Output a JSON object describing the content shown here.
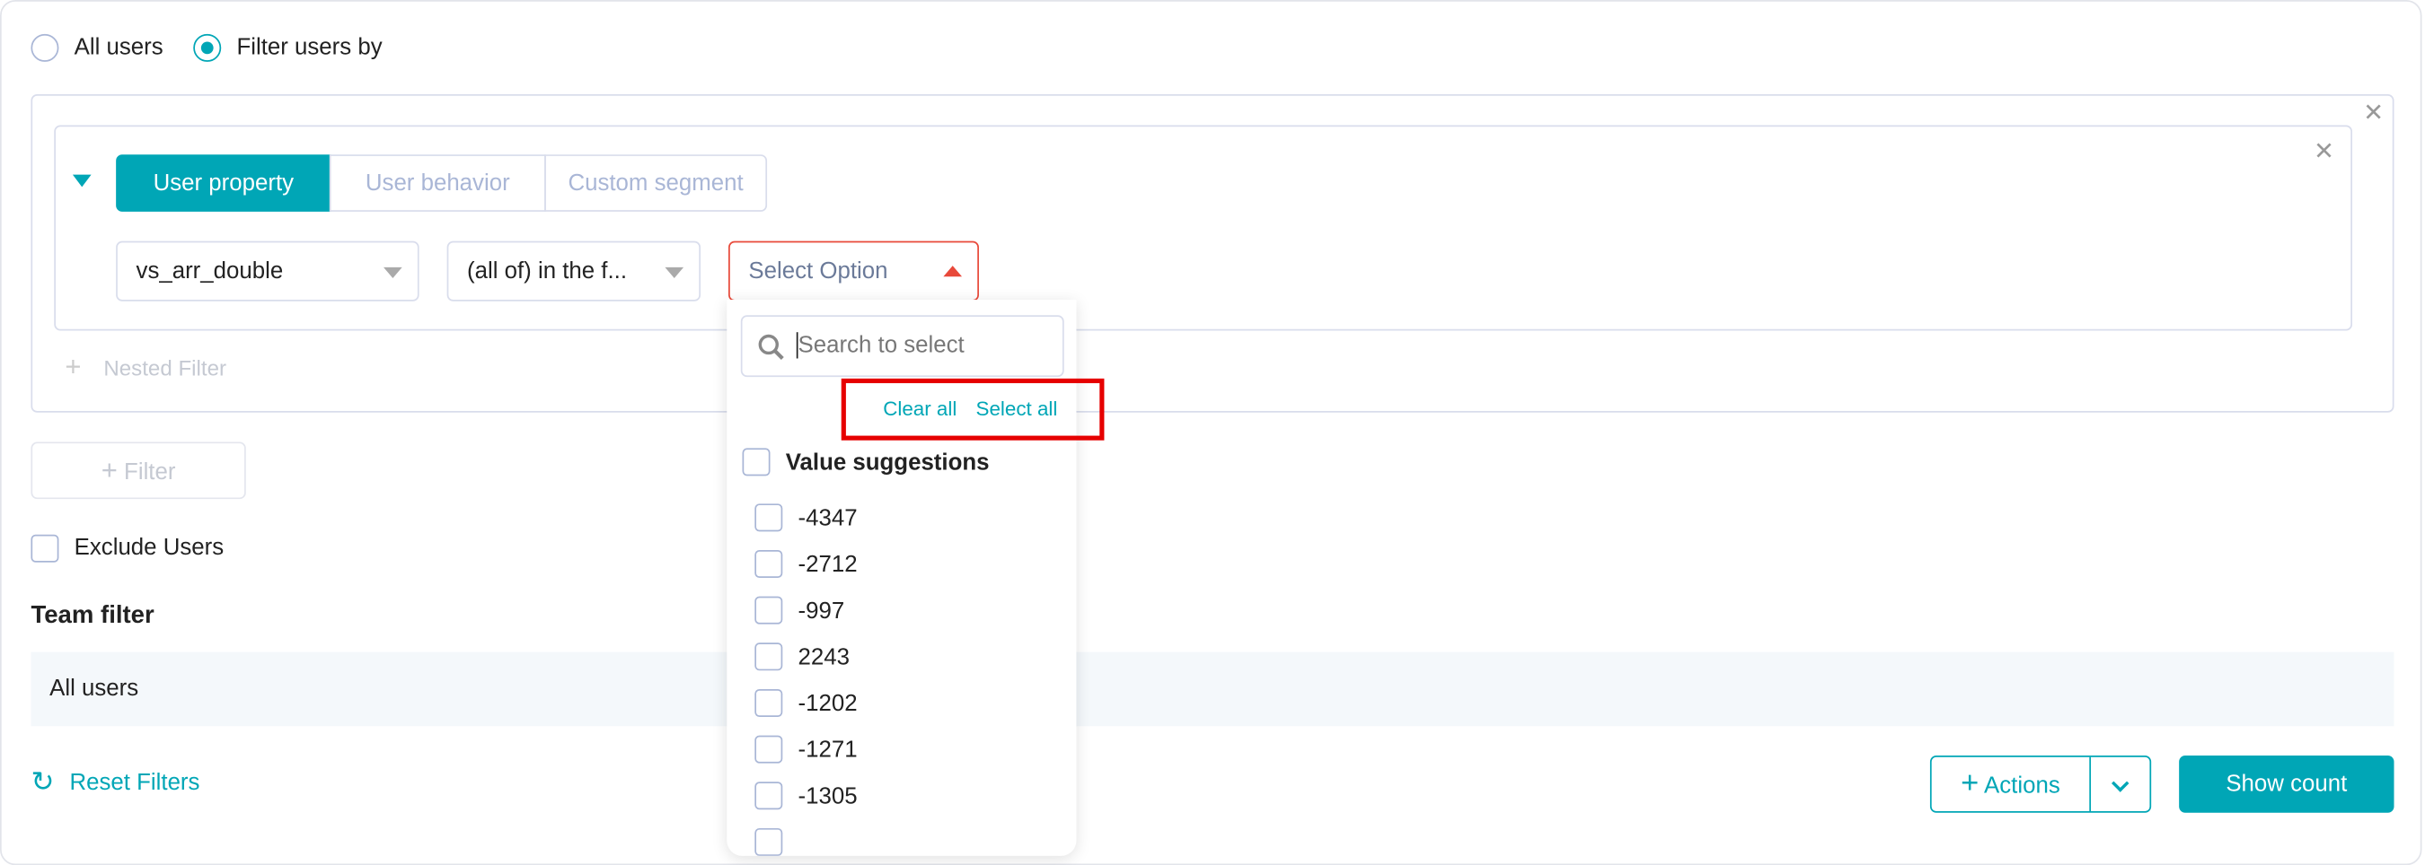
{
  "scope": {
    "all_users_label": "All users",
    "filter_users_by_label": "Filter users by",
    "selected": "Filter users by"
  },
  "filter": {
    "tabs": [
      {
        "label": "User property",
        "active": true
      },
      {
        "label": "User behavior",
        "active": false
      },
      {
        "label": "Custom segment",
        "active": false
      }
    ],
    "property_value": "vs_arr_double",
    "operator_value": "(all of) in the f...",
    "value_placeholder": "Select Option",
    "nested_filter_label": "Nested Filter"
  },
  "dropdown": {
    "search_placeholder": "Search to select",
    "clear_all": "Clear all",
    "select_all": "Select all",
    "group_label": "Value suggestions",
    "options": [
      "-4347",
      "-2712",
      "-997",
      "2243",
      "-1202",
      "-1271",
      "-1305"
    ]
  },
  "add_filter_label": "Filter",
  "exclude_users_label": "Exclude Users",
  "team_filter": {
    "title": "Team filter",
    "value": "All users"
  },
  "footer": {
    "reset_label": "Reset Filters",
    "actions_label": "Actions",
    "show_count_label": "Show count"
  },
  "colors": {
    "accent": "#00a6b6",
    "error": "#e8493a",
    "highlight": "#e60000"
  }
}
